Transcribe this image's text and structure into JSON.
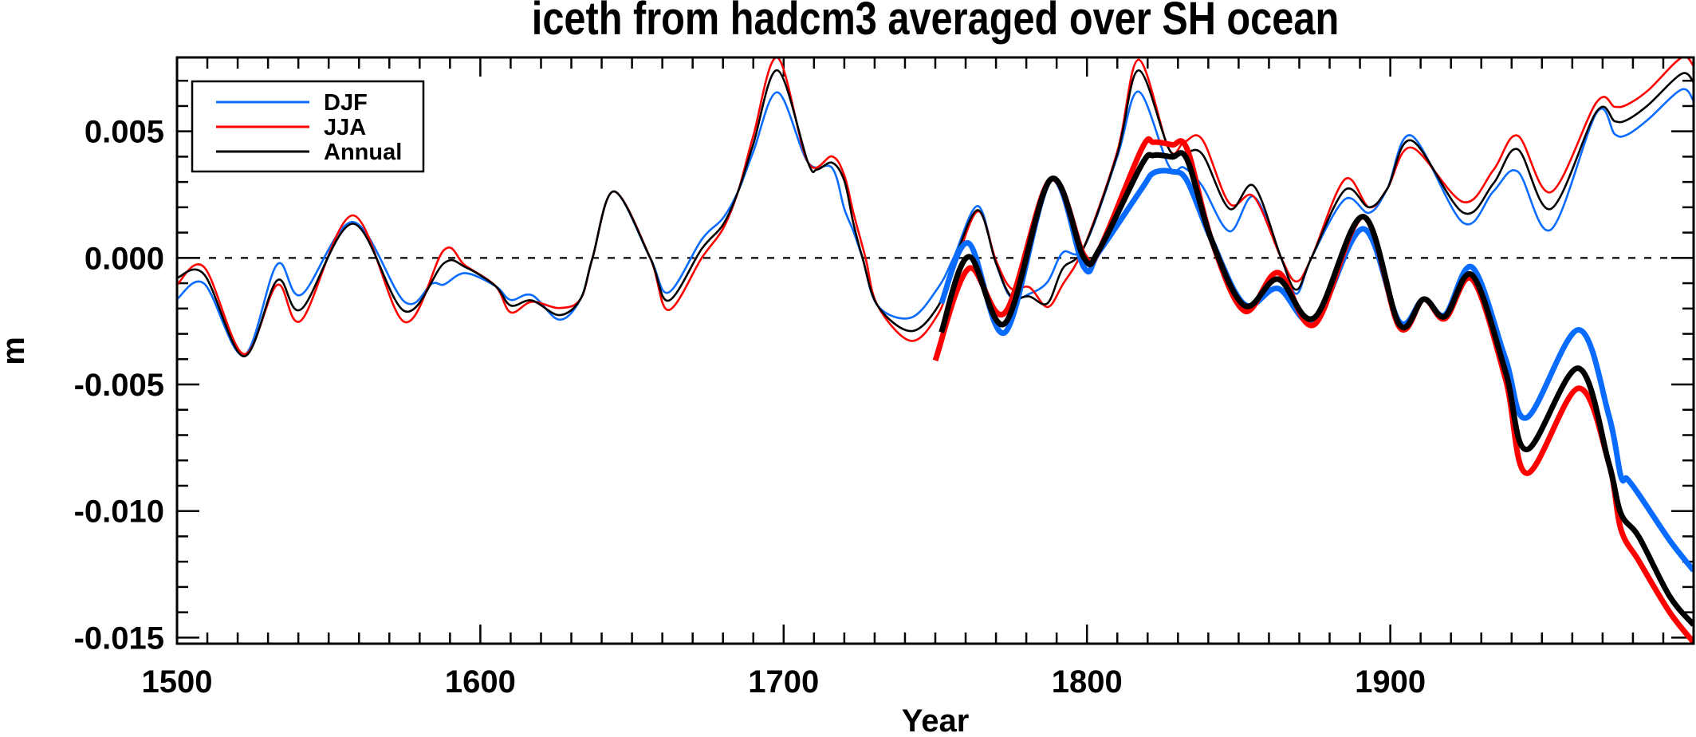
{
  "chart_data": {
    "type": "line",
    "title": "iceth from hadcm3 averaged over SH ocean",
    "xlabel": "Year",
    "ylabel": "m",
    "xlim": [
      1500,
      2000
    ],
    "ylim": [
      -0.01524,
      0.00792
    ],
    "x_ticks": [
      1500,
      1600,
      1700,
      1800,
      1900
    ],
    "x_tick_labels": [
      "1500",
      "1600",
      "1700",
      "1800",
      "1900"
    ],
    "y_ticks": [
      -0.015,
      -0.01,
      -0.005,
      0.0,
      0.005
    ],
    "y_tick_labels": [
      "-0.015",
      "-0.010",
      "-0.005",
      "0.000",
      "0.005"
    ],
    "reference_line": {
      "y": 0,
      "style": "dashed"
    },
    "grid": false,
    "legend": {
      "position": "top-left",
      "entries": [
        {
          "label": "DJF",
          "color": "#0a6cff"
        },
        {
          "label": "JJA",
          "color": "#ff0000"
        },
        {
          "label": "Annual",
          "color": "#000000"
        }
      ]
    },
    "series": [
      {
        "name": "DJF",
        "style": "thin",
        "color": "#0a6cff",
        "x": [
          1500,
          1509,
          1522,
          1533,
          1541,
          1558,
          1575,
          1584,
          1588,
          1595,
          1605,
          1610,
          1617,
          1626,
          1633,
          1637,
          1644,
          1656,
          1662,
          1673,
          1680,
          1685,
          1690,
          1698,
          1708,
          1716,
          1720,
          1723,
          1726,
          1731,
          1742,
          1751,
          1756,
          1764,
          1770,
          1775,
          1781,
          1787,
          1792,
          1799,
          1810,
          1817,
          1827,
          1832,
          1838,
          1847,
          1855,
          1864,
          1869,
          1874,
          1885,
          1893,
          1899,
          1907,
          1924,
          1934,
          1942,
          1953,
          1968,
          1974,
          1978,
          1985,
          1996,
          2000
        ],
        "y": [
          -0.00163,
          -0.00102,
          -0.00385,
          -0.00026,
          -0.00145,
          0.00142,
          -0.00173,
          -0.00102,
          -0.00105,
          -0.0006,
          -0.00111,
          -0.00166,
          -0.00147,
          -0.00244,
          -0.00163,
          0.0,
          0.00263,
          0.0,
          -0.00137,
          0.00073,
          0.00157,
          0.00263,
          0.0042,
          0.00654,
          0.00378,
          0.00355,
          0.00194,
          0.00105,
          0.0,
          -0.00189,
          -0.00236,
          -0.00116,
          0.0,
          0.00205,
          -0.00021,
          -0.00157,
          -0.00142,
          -0.00095,
          0.00021,
          0.00042,
          0.004,
          0.00657,
          0.00363,
          0.00357,
          0.00284,
          0.00105,
          0.00242,
          0.0,
          -0.00142,
          0.0,
          0.00231,
          0.00178,
          0.00273,
          0.00483,
          0.00139,
          0.00263,
          0.00341,
          0.00112,
          0.00573,
          0.00489,
          0.00486,
          0.00547,
          0.00665,
          0.0062
        ]
      },
      {
        "name": "JJA",
        "style": "thin",
        "color": "#ff0000",
        "x": [
          1500,
          1509,
          1522,
          1533,
          1541,
          1558,
          1575,
          1588,
          1595,
          1605,
          1610,
          1617,
          1626,
          1633,
          1637,
          1644,
          1656,
          1662,
          1673,
          1680,
          1685,
          1690,
          1698,
          1708,
          1716,
          1720,
          1723,
          1727,
          1731,
          1742,
          1751,
          1756,
          1764,
          1770,
          1775,
          1781,
          1787,
          1792,
          1799,
          1810,
          1817,
          1827,
          1832,
          1838,
          1847,
          1855,
          1864,
          1869,
          1874,
          1885,
          1893,
          1899,
          1907,
          1924,
          1934,
          1942,
          1953,
          1968,
          1974,
          1978,
          1985,
          1996,
          2000
        ],
        "y": [
          -0.00105,
          -0.00037,
          -0.0038,
          -0.00107,
          -0.00246,
          0.00168,
          -0.00253,
          0.00031,
          -0.0003,
          -0.00111,
          -0.00215,
          -0.00173,
          -0.00198,
          -0.00163,
          0.0,
          0.00263,
          0.0,
          -0.00206,
          0.0,
          0.00115,
          0.00263,
          0.00483,
          0.00791,
          0.00378,
          0.00401,
          0.00326,
          0.00178,
          0.0,
          -0.00189,
          -0.00328,
          -0.0022,
          -0.0005,
          0.00184,
          -0.0001,
          -0.00121,
          -0.00116,
          -0.00194,
          -0.00105,
          0.00042,
          0.0042,
          0.00783,
          0.00431,
          0.00457,
          0.00468,
          0.00215,
          0.00242,
          0.0,
          -0.00093,
          0.0,
          0.0031,
          0.002,
          0.00273,
          0.00436,
          0.00221,
          0.00347,
          0.00483,
          0.0026,
          0.00615,
          0.00597,
          0.00605,
          0.00662,
          0.00791,
          0.00758
        ]
      },
      {
        "name": "Annual",
        "style": "thin",
        "color": "#000000",
        "x": [
          1500,
          1509,
          1522,
          1533,
          1541,
          1558,
          1575,
          1588,
          1595,
          1605,
          1610,
          1617,
          1626,
          1633,
          1637,
          1644,
          1656,
          1662,
          1673,
          1680,
          1685,
          1690,
          1698,
          1708,
          1711,
          1716,
          1720,
          1723,
          1726,
          1731,
          1742,
          1751,
          1756,
          1764,
          1770,
          1775,
          1781,
          1787,
          1792,
          1799,
          1810,
          1817,
          1827,
          1832,
          1838,
          1847,
          1855,
          1864,
          1869,
          1874,
          1885,
          1893,
          1899,
          1907,
          1924,
          1934,
          1942,
          1953,
          1968,
          1974,
          1978,
          1985,
          1996,
          2000
        ],
        "y": [
          -0.00079,
          -0.00066,
          -0.00389,
          -0.00089,
          -0.00202,
          0.00135,
          -0.0021,
          -0.00021,
          -0.00036,
          -0.00111,
          -0.00188,
          -0.00168,
          -0.00226,
          -0.00163,
          0.0,
          0.00263,
          0.0,
          -0.00169,
          0.00036,
          0.00131,
          0.00263,
          0.0045,
          0.00741,
          0.00378,
          0.00349,
          0.00376,
          0.00305,
          0.00136,
          0.0,
          -0.00189,
          -0.00289,
          -0.00189,
          -0.0002,
          0.00189,
          -0.00021,
          -0.00152,
          -0.00152,
          -0.00179,
          -0.00042,
          0.00042,
          0.0041,
          0.00741,
          0.00431,
          0.00414,
          0.0041,
          0.00194,
          0.00284,
          0.0,
          -0.00126,
          0.0,
          0.00268,
          0.002,
          0.00273,
          0.00464,
          0.00179,
          0.00294,
          0.00429,
          0.00194,
          0.00578,
          0.0054,
          0.00545,
          0.00604,
          0.00727,
          0.00694
        ]
      },
      {
        "name": "DJF",
        "style": "thick",
        "color": "#0a6cff",
        "x": [
          1752,
          1761,
          1773,
          1788,
          1799,
          1804,
          1818,
          1822,
          1828,
          1833,
          1841,
          1852,
          1863,
          1875,
          1891,
          1903,
          1911,
          1918,
          1927,
          1938,
          1945,
          1962,
          1972,
          1976,
          1978,
          1982,
          1992,
          2000
        ],
        "y": [
          -0.00179,
          0.00058,
          -0.00294,
          0.0031,
          -0.00037,
          0.00025,
          0.00273,
          0.00336,
          0.00341,
          0.00305,
          0.00073,
          -0.00184,
          -0.00121,
          -0.00247,
          0.00115,
          -0.00252,
          -0.00163,
          -0.00225,
          -0.00037,
          -0.00399,
          -0.00631,
          -0.00284,
          -0.0062,
          -0.00862,
          -0.00872,
          -0.00935,
          -0.01114,
          -0.01235
        ]
      },
      {
        "name": "JJA",
        "style": "thick",
        "color": "#ff0000",
        "x": [
          1750,
          1761,
          1773,
          1788,
          1799,
          1804,
          1818,
          1822,
          1828,
          1833,
          1841,
          1852,
          1863,
          1875,
          1891,
          1903,
          1911,
          1918,
          1927,
          1938,
          1945,
          1962,
          1972,
          1976,
          1982,
          1992,
          2000
        ],
        "y": [
          -0.00405,
          -0.00042,
          -0.00216,
          0.0031,
          0.00011,
          0.00032,
          0.0043,
          0.00457,
          0.00447,
          0.00431,
          0.00073,
          -0.0021,
          -0.00058,
          -0.00263,
          0.00163,
          -0.00273,
          -0.00163,
          -0.0024,
          -0.00084,
          -0.0048,
          -0.00851,
          -0.00515,
          -0.00809,
          -0.01071,
          -0.01198,
          -0.01398,
          -0.01519
        ]
      },
      {
        "name": "Annual",
        "style": "thick",
        "color": "#000000",
        "x": [
          1752,
          1761,
          1773,
          1788,
          1799,
          1804,
          1818,
          1822,
          1828,
          1833,
          1841,
          1852,
          1863,
          1875,
          1891,
          1903,
          1911,
          1918,
          1927,
          1938,
          1945,
          1962,
          1972,
          1976,
          1982,
          1992,
          2000
        ],
        "y": [
          -0.00294,
          5e-05,
          -0.00258,
          0.0031,
          0.0,
          0.00032,
          0.00368,
          0.00405,
          0.00399,
          0.00389,
          0.00073,
          -0.00189,
          -0.00084,
          -0.00236,
          0.00163,
          -0.00263,
          -0.00163,
          -0.00231,
          -0.00068,
          -0.0045,
          -0.00757,
          -0.00436,
          -0.00809,
          -0.01009,
          -0.01103,
          -0.01335,
          -0.0145
        ]
      }
    ]
  }
}
